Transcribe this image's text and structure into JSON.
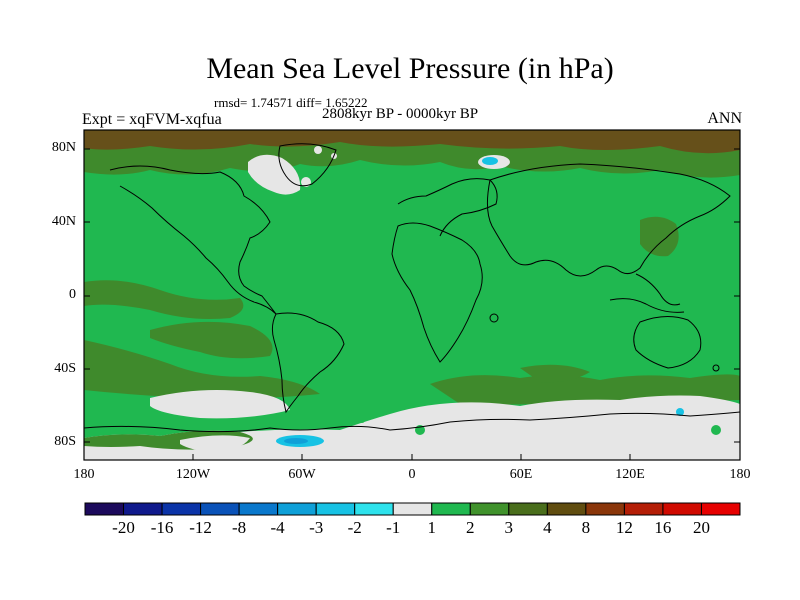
{
  "title": "Mean Sea Level Pressure (in hPa)",
  "stats_text": "rmsd= 1.74571 diff= 1.65222",
  "period": "2808kyr BP - 0000kyr BP",
  "experiment": "Expt = xqFVM-xqfua",
  "season": "ANN",
  "lat_labels": [
    "80N",
    "40N",
    "0",
    "40S",
    "80S"
  ],
  "lon_labels": [
    "180",
    "120W",
    "60W",
    "0",
    "60E",
    "120E",
    "180"
  ],
  "colorbar": {
    "labels": [
      "-20",
      "-16",
      "-12",
      "-8",
      "-4",
      "-3",
      "-2",
      "-1",
      "1",
      "2",
      "3",
      "4",
      "8",
      "12",
      "16",
      "20"
    ],
    "colors": [
      "#1c0a5c",
      "#101a8c",
      "#0b34a8",
      "#0a52b8",
      "#0a78cc",
      "#0fa0d8",
      "#17c2e4",
      "#2ee2ec",
      "#e6e6e6",
      "#20b850",
      "#40922c",
      "#4a6e1c",
      "#604d10",
      "#8a360a",
      "#b41e06",
      "#d00a00",
      "#e60000"
    ]
  },
  "colors": {
    "background_field": "#20b850",
    "positive_band": "#3f8a2c",
    "strong_positive": "#66501a",
    "near_zero": "#e6e6e6",
    "negative": "#17c2e4",
    "coastline": "#000000"
  }
}
